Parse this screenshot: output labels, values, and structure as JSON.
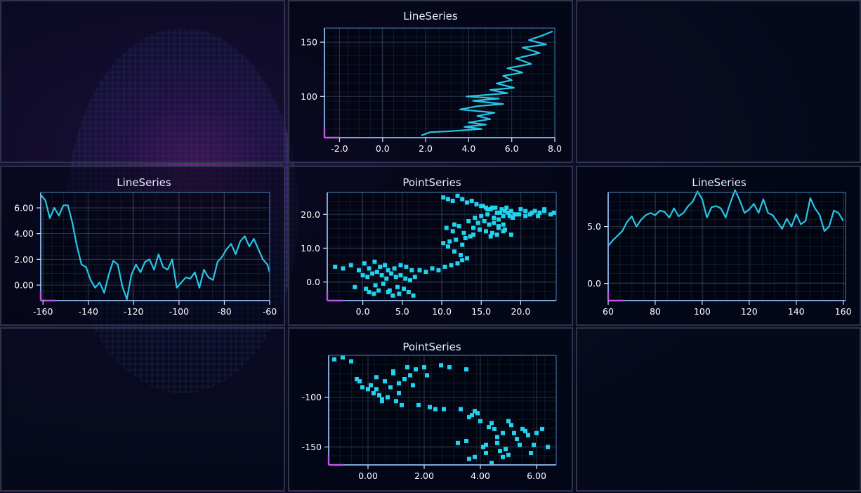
{
  "chart_data": [
    {
      "id": "top-center",
      "type": "line",
      "title": "LineSeries",
      "xlim": [
        -2.7,
        8.0
      ],
      "ylim": [
        62,
        163
      ],
      "xticks": [
        -2.0,
        0.0,
        2.0,
        4.0,
        6.0,
        8.0
      ],
      "xtick_labels": [
        "-2.0",
        "0.0",
        "2.0",
        "4.0",
        "6.0",
        "8.0"
      ],
      "yticks": [
        100,
        150
      ],
      "ytick_labels": [
        "100",
        "150"
      ],
      "grid": true,
      "series": [
        {
          "x": [
            1.8,
            2.2,
            3.2,
            4.6,
            3.8,
            4.8,
            4.0,
            5.0,
            4.4,
            5.2,
            3.6,
            4.4,
            5.6,
            4.2,
            5.4,
            3.9,
            5.8,
            5.0,
            6.1,
            5.3,
            6.0,
            5.6,
            6.5,
            5.8,
            6.9,
            6.2,
            7.3,
            6.5,
            7.6,
            6.8,
            7.4,
            7.9
          ],
          "y": [
            64,
            67,
            68,
            70,
            72,
            74,
            76,
            79,
            82,
            85,
            88,
            91,
            93,
            96,
            98,
            100,
            103,
            106,
            108,
            112,
            115,
            119,
            122,
            126,
            130,
            135,
            140,
            145,
            148,
            152,
            156,
            160
          ]
        }
      ]
    },
    {
      "id": "mid-left",
      "type": "line",
      "title": "LineSeries",
      "xlim": [
        -161,
        -60
      ],
      "ylim": [
        -1.2,
        7.2
      ],
      "xticks": [
        -160,
        -140,
        -120,
        -100,
        -80,
        -60
      ],
      "xtick_labels": [
        "-160",
        "-140",
        "-120",
        "-100",
        "-80",
        "-60"
      ],
      "yticks": [
        0,
        2,
        4,
        6
      ],
      "ytick_labels": [
        "0.00",
        "2.00",
        "4.00",
        "6.00"
      ],
      "grid": true,
      "series": [
        {
          "x": [
            -161,
            -159,
            -157,
            -155,
            -153,
            -151,
            -149,
            -147,
            -145,
            -143,
            -141,
            -139,
            -137,
            -135,
            -133,
            -131,
            -129,
            -127,
            -125,
            -123,
            -121,
            -119,
            -117,
            -115,
            -113,
            -111,
            -109,
            -107,
            -105,
            -103,
            -101,
            -99,
            -97,
            -95,
            -93,
            -91,
            -89,
            -87,
            -85,
            -83,
            -81,
            -79,
            -77,
            -75,
            -73,
            -71,
            -69,
            -67,
            -65,
            -63,
            -61,
            -60
          ],
          "y": [
            7.0,
            6.6,
            5.2,
            6.0,
            5.4,
            6.2,
            6.2,
            4.8,
            3.0,
            1.6,
            1.4,
            0.4,
            -0.2,
            0.2,
            -0.6,
            0.8,
            1.9,
            1.6,
            -0.1,
            -1.1,
            0.8,
            1.6,
            1.0,
            1.8,
            2.0,
            1.2,
            2.4,
            1.4,
            1.2,
            2.0,
            -0.2,
            0.2,
            0.6,
            0.5,
            1.0,
            -0.2,
            1.2,
            0.6,
            0.4,
            1.8,
            2.2,
            2.8,
            3.2,
            2.4,
            3.4,
            3.8,
            3.0,
            3.6,
            2.8,
            2.0,
            1.6,
            1.0
          ]
        }
      ]
    },
    {
      "id": "mid-center",
      "type": "scatter",
      "title": "PointSeries",
      "xlim": [
        -4.5,
        24.5
      ],
      "ylim": [
        -5.5,
        26.5
      ],
      "xticks": [
        0,
        5,
        10,
        15,
        20
      ],
      "xtick_labels": [
        "0.0",
        "5.0",
        "10.0",
        "15.0",
        "20.0"
      ],
      "yticks": [
        0,
        10,
        20
      ],
      "ytick_labels": [
        "0.0",
        "10.0",
        "20.0"
      ],
      "grid": true,
      "series": [
        {
          "x": [
            -3.5,
            -2.5,
            -1.5,
            -0.5,
            0.2,
            0.8,
            1.5,
            2.2,
            2.8,
            3.2,
            4.0,
            4.8,
            5.5,
            6.2,
            0.0,
            0.6,
            1.2,
            1.8,
            2.4,
            3.0,
            3.6,
            4.2,
            4.8,
            5.4,
            6.0,
            6.6,
            -1.0,
            0.4,
            1.6,
            2.6,
            3.4,
            4.4,
            5.2,
            0.8,
            1.4,
            2.0,
            3.2,
            3.8,
            4.6,
            5.8,
            6.4,
            7.2,
            8.0,
            8.8,
            9.6,
            10.4,
            11.2,
            12.0,
            12.6,
            13.2,
            12.4,
            11.6,
            10.8,
            10.2,
            11.0,
            11.8,
            12.6,
            13.0,
            13.6,
            14.0,
            12.8,
            11.4,
            10.6,
            11.6,
            12.2,
            13.4,
            14.2,
            15.0,
            15.8,
            16.6,
            17.2,
            17.8,
            18.4,
            19.0,
            19.8,
            20.6,
            21.4,
            22.2,
            23.0,
            23.8,
            24.2,
            10.2,
            10.8,
            11.4,
            12.0,
            12.6,
            13.2,
            13.8,
            14.4,
            15.0,
            15.6,
            16.2,
            16.8,
            17.4,
            18.0,
            18.6,
            19.2,
            14.6,
            15.4,
            16.0,
            16.6,
            17.2,
            17.8,
            15.2,
            15.8,
            16.4,
            17.0,
            17.6,
            18.2,
            18.8,
            19.4,
            20.0,
            20.6,
            21.2,
            21.8,
            22.4,
            23.0,
            14.0,
            14.8,
            15.6,
            16.4,
            17.2,
            18.0,
            18.8,
            16.2,
            17.0,
            17.8
          ],
          "y": [
            4.5,
            4.0,
            5.0,
            3.5,
            5.5,
            4.0,
            6.0,
            4.5,
            5.0,
            3.5,
            4.0,
            5.0,
            4.5,
            3.5,
            2.0,
            1.5,
            2.5,
            3.0,
            2.0,
            1.0,
            2.5,
            1.5,
            2.0,
            1.0,
            0.5,
            1.5,
            -1.5,
            -2.0,
            -1.0,
            -0.5,
            -2.5,
            -1.5,
            -2.0,
            -3.0,
            -3.5,
            -2.5,
            -3.0,
            -4.0,
            -3.5,
            -3.0,
            -4.0,
            3.5,
            3.0,
            4.0,
            3.5,
            4.5,
            5.0,
            5.5,
            6.5,
            7.0,
            8.0,
            9.0,
            10.5,
            11.5,
            12.0,
            12.5,
            11.0,
            13.0,
            13.5,
            14.0,
            14.5,
            15.0,
            16.0,
            17.0,
            16.5,
            18.0,
            19.0,
            19.5,
            20.0,
            19.0,
            18.5,
            19.5,
            20.5,
            19.0,
            20.0,
            21.0,
            20.5,
            19.5,
            21.0,
            20.0,
            20.5,
            25.0,
            24.5,
            24.0,
            25.5,
            24.5,
            23.5,
            24.0,
            23.0,
            22.5,
            22.0,
            21.5,
            22.0,
            20.5,
            21.0,
            19.5,
            20.0,
            17.5,
            18.0,
            17.0,
            17.5,
            16.5,
            17.0,
            22.5,
            21.5,
            22.0,
            20.5,
            21.5,
            22.0,
            21.0,
            20.0,
            21.5,
            19.5,
            20.0,
            21.0,
            20.5,
            21.5,
            16.0,
            15.5,
            15.0,
            14.5,
            16.0,
            15.5,
            14.0,
            13.5,
            14.0,
            15.0
          ]
        }
      ]
    },
    {
      "id": "mid-right",
      "type": "line",
      "title": "LineSeries",
      "xlim": [
        60,
        161
      ],
      "ylim": [
        -1.5,
        8.0
      ],
      "xticks": [
        60,
        80,
        100,
        120,
        140,
        160
      ],
      "xtick_labels": [
        "60",
        "80",
        "100",
        "120",
        "140",
        "160"
      ],
      "yticks": [
        0,
        5
      ],
      "ytick_labels": [
        "0.0",
        "5.0"
      ],
      "grid": true,
      "series": [
        {
          "x": [
            60,
            62,
            64,
            66,
            68,
            70,
            72,
            74,
            76,
            78,
            80,
            82,
            84,
            86,
            88,
            90,
            92,
            94,
            96,
            98,
            100,
            102,
            104,
            106,
            108,
            110,
            112,
            114,
            116,
            118,
            120,
            122,
            124,
            126,
            128,
            130,
            132,
            134,
            136,
            138,
            140,
            142,
            144,
            146,
            148,
            150,
            152,
            154,
            156,
            158,
            160
          ],
          "y": [
            3.3,
            3.8,
            4.2,
            4.6,
            5.4,
            5.9,
            5.0,
            5.6,
            6.0,
            6.2,
            6.0,
            6.4,
            6.3,
            5.8,
            6.6,
            5.9,
            6.2,
            6.8,
            7.2,
            8.1,
            7.4,
            5.8,
            6.7,
            6.8,
            6.6,
            5.8,
            7.1,
            8.2,
            7.3,
            6.2,
            6.5,
            7.0,
            6.2,
            7.4,
            6.2,
            6.0,
            5.4,
            4.8,
            5.7,
            5.0,
            6.1,
            5.2,
            5.5,
            7.5,
            6.6,
            6.0,
            4.6,
            5.0,
            6.4,
            6.2,
            5.5
          ]
        }
      ]
    },
    {
      "id": "bottom-center",
      "type": "scatter",
      "title": "PointSeries",
      "xlim": [
        -1.4,
        6.7
      ],
      "ylim": [
        -168,
        -58
      ],
      "xticks": [
        0,
        2,
        4,
        6
      ],
      "xtick_labels": [
        "0.00",
        "2.00",
        "4.00",
        "6.00"
      ],
      "yticks": [
        -100,
        -150
      ],
      "ytick_labels": [
        "-100",
        "-150"
      ],
      "grid": true,
      "series": [
        {
          "x": [
            -1.2,
            -0.9,
            -0.6,
            -0.3,
            -0.2,
            0.0,
            0.1,
            0.3,
            0.4,
            0.5,
            0.6,
            0.7,
            0.8,
            0.9,
            1.0,
            1.1,
            1.2,
            1.3,
            1.5,
            1.7,
            1.8,
            2.0,
            2.2,
            2.4,
            2.6,
            2.7,
            2.9,
            3.3,
            3.5,
            3.2,
            3.5,
            3.6,
            3.7,
            3.8,
            3.9,
            4.0,
            4.1,
            4.2,
            4.3,
            4.4,
            4.5,
            4.6,
            4.7,
            4.8,
            4.9,
            5.0,
            5.1,
            5.2,
            5.3,
            5.4,
            5.6,
            5.7,
            5.8,
            6.0,
            6.2,
            6.4,
            -0.4,
            0.2,
            0.5,
            1.1,
            1.4,
            2.1,
            0.3,
            0.9,
            1.6,
            3.8,
            4.4,
            4.6,
            5.0,
            5.5,
            5.9,
            3.6,
            4.2,
            4.8
          ],
          "y": [
            -62,
            -60,
            -64,
            -84,
            -90,
            -92,
            -88,
            -80,
            -98,
            -102,
            -84,
            -100,
            -90,
            -74,
            -104,
            -86,
            -108,
            -82,
            -78,
            -72,
            -108,
            -70,
            -110,
            -112,
            -68,
            -112,
            -70,
            -112,
            -72,
            -146,
            -144,
            -120,
            -118,
            -160,
            -116,
            -124,
            -150,
            -148,
            -130,
            -166,
            -132,
            -146,
            -154,
            -160,
            -152,
            -158,
            -128,
            -136,
            -142,
            -148,
            -134,
            -138,
            -156,
            -136,
            -132,
            -150,
            -82,
            -96,
            -104,
            -96,
            -70,
            -78,
            -92,
            -76,
            -88,
            -114,
            -126,
            -140,
            -124,
            -132,
            -148,
            -162,
            -156,
            -136
          ]
        }
      ]
    }
  ]
}
